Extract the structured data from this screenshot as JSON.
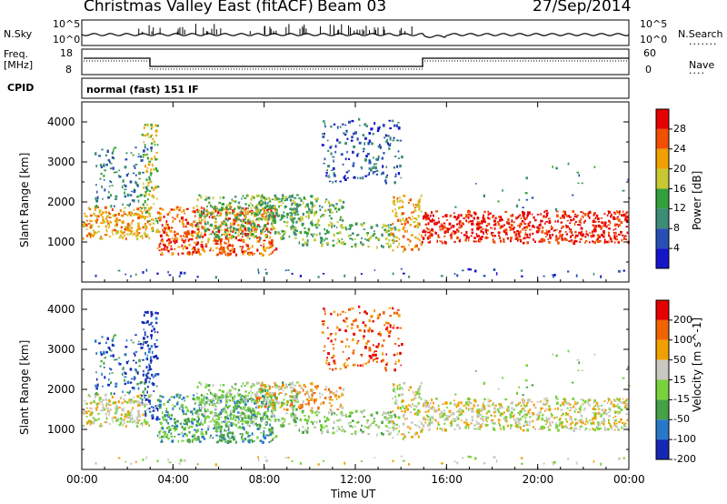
{
  "header": {
    "station": "Christmas Valley East (fitACF)",
    "beam": "Beam 03",
    "date": "27/Sep/2014"
  },
  "strip_labels": {
    "nsky": "N.Sky",
    "nsky_ticks": [
      "10^5",
      "10^0"
    ],
    "nsearch": "N.Search",
    "nsearch_ticks": [
      "10^5",
      "10^0"
    ],
    "freq_line1": "Freq.",
    "freq_line2": "[MHz]",
    "freq_ticks": [
      "18",
      "8"
    ],
    "nave": "Nave",
    "nave_ticks": [
      "60",
      "0"
    ],
    "cpid": "CPID",
    "cpid_value": "normal (fast) 151 IF"
  },
  "colors": {
    "power_scale": [
      "#1414c8",
      "#2850b4",
      "#3c8c78",
      "#32a03c",
      "#c8c832",
      "#f0a000",
      "#f05000",
      "#e60000"
    ],
    "velocity_scale": [
      "#1428b4",
      "#2878c8",
      "#46a046",
      "#78d23c",
      "#c8c8c0",
      "#f0a000",
      "#f06400",
      "#e60000"
    ]
  },
  "chart_data": [
    {
      "type": "heatmap",
      "name": "Power",
      "ylabel": "Slant Range [km]",
      "ylim": [
        0,
        4500
      ],
      "yticks": [
        "4000",
        "3000",
        "2000",
        "1000"
      ],
      "colorbar_label": "Power [dB]",
      "colorbar_ticks": [
        "28",
        "24",
        "20",
        "16",
        "12",
        "8",
        "4"
      ],
      "colorbar_range": [
        0,
        32
      ]
    },
    {
      "type": "heatmap",
      "name": "Velocity",
      "ylabel": "Slant Range [km]",
      "ylim": [
        0,
        4500
      ],
      "yticks": [
        "4000",
        "3000",
        "2000",
        "1000"
      ],
      "colorbar_label": "Velocity [m s^-1]",
      "colorbar_ticks": [
        "200",
        "100",
        "50",
        "15",
        "-15",
        "-50",
        "-100",
        "-200"
      ]
    }
  ],
  "xaxis": {
    "label": "Time UT",
    "ticks": [
      "00:00",
      "04:00",
      "08:00",
      "12:00",
      "16:00",
      "20:00",
      "00:00"
    ]
  }
}
